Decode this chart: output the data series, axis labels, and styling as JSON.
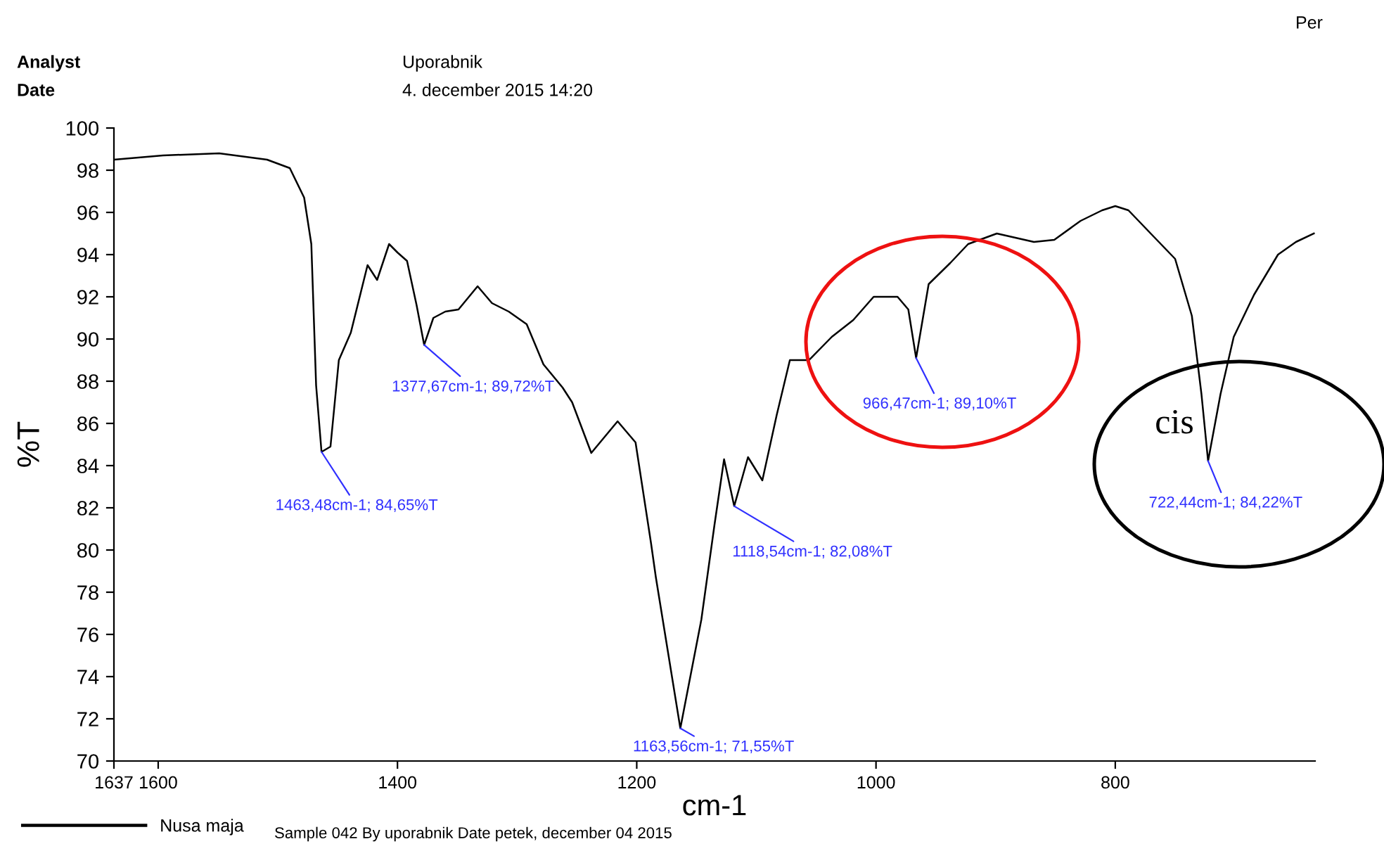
{
  "chart_data": {
    "type": "line",
    "xlabel": "cm-1",
    "ylabel": "%T",
    "x": [
      1637,
      1596,
      1549,
      1509,
      1490,
      1478,
      1472,
      1468,
      1463.48,
      1456,
      1449,
      1439,
      1425,
      1417,
      1407,
      1400,
      1392,
      1384,
      1377.67,
      1370,
      1360,
      1349,
      1333,
      1321,
      1307,
      1292,
      1278,
      1262,
      1254,
      1238,
      1216,
      1201,
      1188,
      1184,
      1163.56,
      1146,
      1135,
      1127,
      1118.54,
      1107,
      1095,
      1083,
      1072,
      1056,
      1037,
      1019,
      1002,
      982,
      973,
      966.47,
      956,
      938,
      923,
      899,
      868,
      851,
      829,
      811,
      800,
      789,
      767,
      750,
      736,
      728,
      722.44,
      712,
      701,
      684,
      664,
      649,
      634
    ],
    "series": [
      {
        "name": "Nusa maja",
        "color": "#000000",
        "values": [
          98.5,
          98.7,
          98.8,
          98.5,
          98.1,
          96.7,
          94.5,
          87.8,
          84.65,
          84.9,
          89.0,
          90.3,
          93.5,
          92.8,
          94.5,
          94.1,
          93.7,
          91.6,
          89.72,
          91.0,
          91.3,
          91.4,
          92.5,
          91.7,
          91.3,
          90.7,
          88.8,
          87.7,
          87.0,
          84.6,
          86.1,
          85.1,
          80.3,
          78.7,
          71.55,
          76.7,
          81.2,
          84.3,
          82.08,
          84.4,
          83.3,
          86.4,
          89.0,
          89.0,
          90.1,
          90.9,
          92.0,
          92.0,
          91.4,
          89.1,
          92.6,
          93.6,
          94.5,
          95.0,
          94.6,
          94.7,
          95.6,
          96.1,
          96.3,
          96.1,
          94.8,
          93.8,
          91.1,
          87.4,
          84.22,
          87.4,
          90.1,
          92.1,
          94.0,
          94.6,
          95.0
        ]
      }
    ],
    "xlim": [
      1637,
      633
    ],
    "xticks": [
      1637,
      1600,
      1400,
      1200,
      1000,
      800
    ],
    "ylim": [
      70,
      100
    ],
    "yticks": [
      70,
      72,
      74,
      76,
      78,
      80,
      82,
      84,
      86,
      88,
      90,
      92,
      94,
      96,
      98,
      100
    ],
    "grid": false,
    "legend": "bottom left",
    "annotations": [
      {
        "text": "1463,48cm-1; 84,65%T",
        "x": 1463.48,
        "y": 84.65
      },
      {
        "text": "1377,67cm-1; 89,72%T",
        "x": 1377.67,
        "y": 89.72
      },
      {
        "text": "1163,56cm-1; 71,55%T",
        "x": 1163.56,
        "y": 71.55
      },
      {
        "text": "1118,54cm-1; 82,08%T",
        "x": 1118.54,
        "y": 82.08
      },
      {
        "text": "966,47cm-1; 89,10%T",
        "x": 966.47,
        "y": 89.1
      },
      {
        "text": "722,44cm-1; 84,22%T",
        "x": 722.44,
        "y": 84.22
      },
      "Per",
      "Analyst",
      "Date",
      "Uporabnik",
      "4. december 2015 14:20",
      "Sample 042 By uporabnik Date petek, december 04 2015",
      "cis"
    ]
  }
}
